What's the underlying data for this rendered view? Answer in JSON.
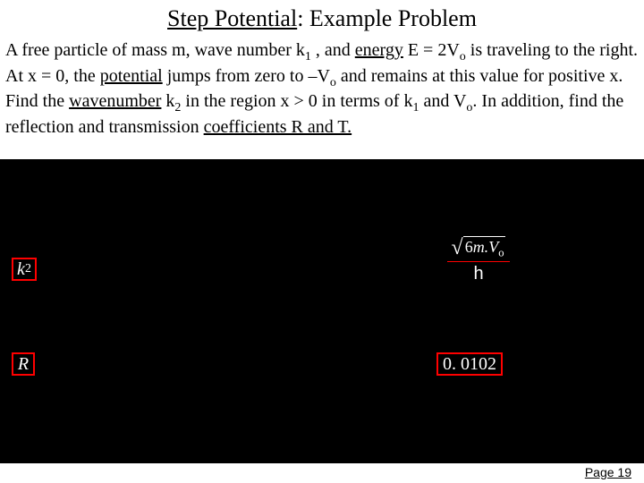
{
  "title": {
    "underlined": "Step Potential",
    "rest": ": Example Problem"
  },
  "problem": {
    "line1a": "A free particle of mass m, wave number k",
    "line1sub1": "1",
    "line1b": " , and ",
    "line1und1": "energy",
    "line1c": " E = 2V",
    "line1sub2": "o",
    "line1d": " is traveling",
    "line2a": "to the right. At x = 0, the ",
    "line2und1": "potential",
    "line2b": " jumps from zero to –V",
    "line2sub1": "o",
    "line2c": " and remains at",
    "line3a": "this value for positive x. Find the ",
    "line3und1": "wavenumber",
    "line3b": " k",
    "line3sub1": "2",
    "line3c": " in the region x > 0 in",
    "line4a": "terms of k",
    "line4sub1": "1",
    "line4b": " and V",
    "line4sub2": "o",
    "line4c": ". In addition, find the reflection and transmission",
    "line5und": "coefficients R and T."
  },
  "boxes": {
    "k2": "k",
    "k2sub": "2",
    "R": "R",
    "val": "0. 0102"
  },
  "frac": {
    "rad_num": "6",
    "rad_m": "m.",
    "rad_V": "V",
    "rad_osub": "o",
    "denom": "h"
  },
  "footer": {
    "page": "Page 19"
  },
  "colors": {
    "red": "#ff0000",
    "black": "#000000",
    "white": "#ffffff"
  }
}
